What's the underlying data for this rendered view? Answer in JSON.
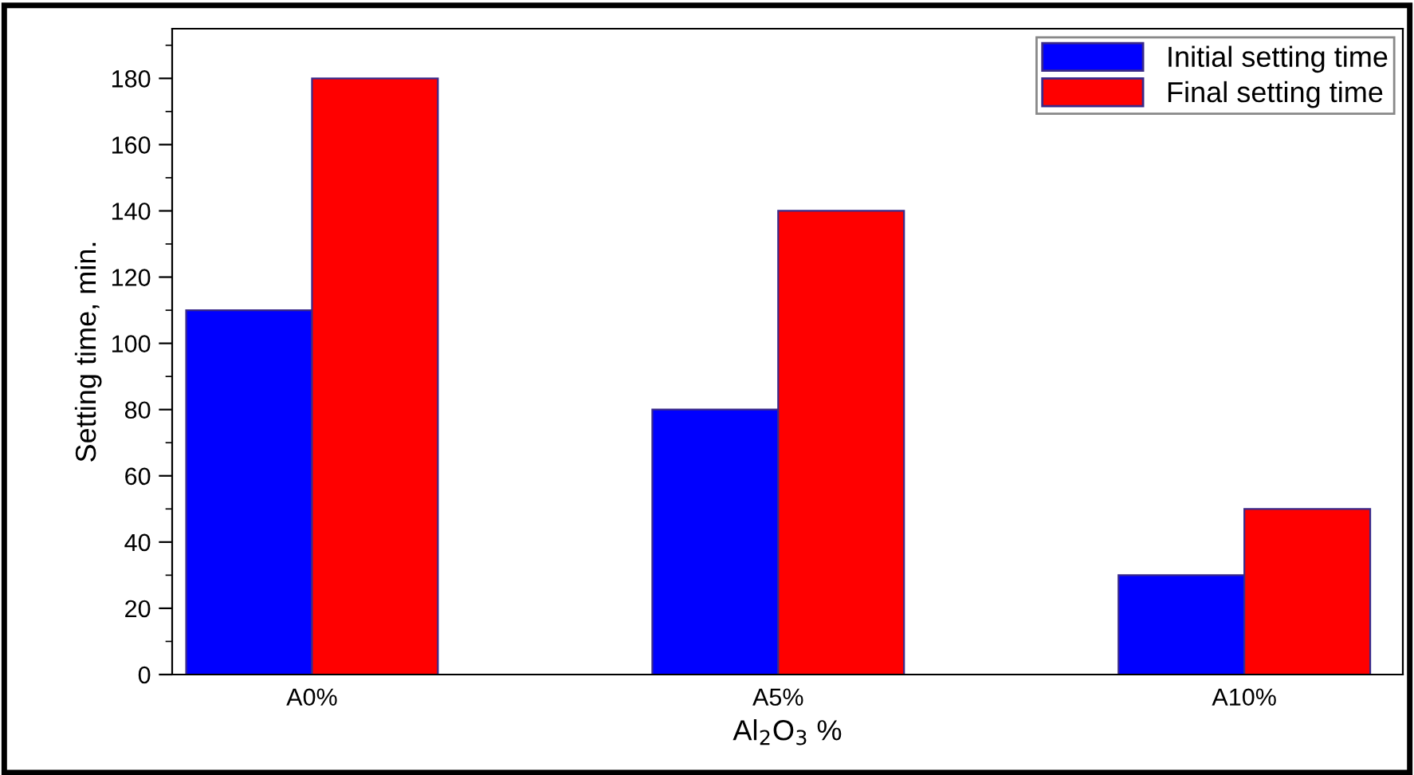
{
  "chart_data": {
    "type": "bar",
    "categories": [
      "A0%",
      "A5%",
      "A10%"
    ],
    "series": [
      {
        "name": "Initial setting time",
        "color": "#0000ff",
        "values": [
          110,
          80,
          30
        ]
      },
      {
        "name": "Final setting time",
        "color": "#ff0000",
        "values": [
          180,
          140,
          50
        ]
      }
    ],
    "xlabel": "Al$_{2}$O$_{3}$ %",
    "ylabel": "Setting time, min.",
    "ylim": [
      0,
      195
    ],
    "yticks": [
      0,
      {
        "value": 10,
        "label": null
      },
      20,
      {
        "value": 30,
        "label": null
      },
      40,
      {
        "value": 50,
        "label": null
      },
      60,
      {
        "value": 70,
        "label": null
      },
      80,
      {
        "value": 90,
        "label": null
      },
      100,
      {
        "value": 110,
        "label": null
      },
      120,
      {
        "value": 130,
        "label": null
      },
      140,
      {
        "value": 150,
        "label": null
      },
      160,
      {
        "value": 170,
        "label": null
      },
      180,
      {
        "value": 190,
        "label": null
      }
    ],
    "grid": false,
    "legend": "top right"
  }
}
